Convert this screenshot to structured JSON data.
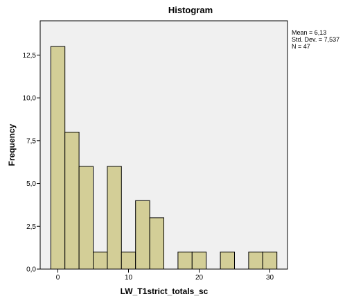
{
  "chart_data": {
    "type": "bar",
    "title": "Histogram",
    "xlabel": "LW_T1strict_totals_sc",
    "ylabel": "Frequency",
    "xlim": [
      -2.5,
      32.5
    ],
    "ylim": [
      0,
      14.5
    ],
    "xticks": [
      0,
      10,
      20,
      30
    ],
    "yticks": [
      0,
      2.5,
      5,
      7.5,
      10,
      12.5
    ],
    "xtick_labels": [
      "0",
      "10",
      "20",
      "30"
    ],
    "ytick_labels": [
      "0,0",
      "2,5",
      "5,0",
      "7,5",
      "10,0",
      "12,5"
    ],
    "bin_width": 2,
    "bins": [
      {
        "start": -1,
        "end": 1,
        "value": 13
      },
      {
        "start": 1,
        "end": 3,
        "value": 8
      },
      {
        "start": 3,
        "end": 5,
        "value": 6
      },
      {
        "start": 5,
        "end": 7,
        "value": 1
      },
      {
        "start": 7,
        "end": 9,
        "value": 6
      },
      {
        "start": 9,
        "end": 11,
        "value": 1
      },
      {
        "start": 11,
        "end": 13,
        "value": 4
      },
      {
        "start": 13,
        "end": 15,
        "value": 3
      },
      {
        "start": 15,
        "end": 17,
        "value": 0
      },
      {
        "start": 17,
        "end": 19,
        "value": 1
      },
      {
        "start": 19,
        "end": 21,
        "value": 1
      },
      {
        "start": 21,
        "end": 23,
        "value": 0
      },
      {
        "start": 23,
        "end": 25,
        "value": 1
      },
      {
        "start": 25,
        "end": 27,
        "value": 0
      },
      {
        "start": 27,
        "end": 29,
        "value": 1
      },
      {
        "start": 29,
        "end": 31,
        "value": 1
      }
    ],
    "stats": [
      "Mean = 6,13",
      "Std. Dev. = 7,537",
      "N = 47"
    ],
    "grid": false,
    "colors": {
      "plot_background": "#f0f0f0",
      "bar_fill": "#d3ce97",
      "bar_stroke": "#000000"
    }
  }
}
